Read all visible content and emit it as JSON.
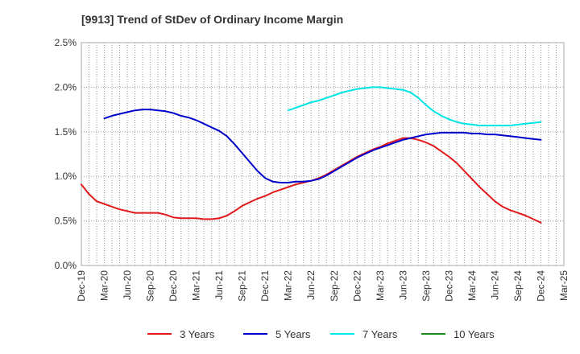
{
  "chart_data": {
    "type": "line",
    "title": "[9913]  Trend of StDev of Ordinary Income Margin",
    "xlabel": "",
    "ylabel": "",
    "ylim": [
      0,
      2.5
    ],
    "y_ticks": [
      "0.0%",
      "0.5%",
      "1.0%",
      "1.5%",
      "2.0%",
      "2.5%"
    ],
    "x_ticks": [
      "Dec-19",
      "Mar-20",
      "Jun-20",
      "Sep-20",
      "Dec-20",
      "Mar-21",
      "Jun-21",
      "Sep-21",
      "Dec-21",
      "Mar-22",
      "Jun-22",
      "Sep-22",
      "Dec-22",
      "Mar-23",
      "Jun-23",
      "Sep-23",
      "Dec-23",
      "Mar-24",
      "Jun-24",
      "Sep-24",
      "Dec-24",
      "Mar-25"
    ],
    "grid": true,
    "legend_position": "bottom",
    "series": [
      {
        "name": "3 Years",
        "color": "#e31a1c",
        "points": [
          [
            "Dec-19",
            0.91
          ],
          [
            "Jan-20",
            0.8
          ],
          [
            "Feb-20",
            0.72
          ],
          [
            "Mar-20",
            0.69
          ],
          [
            "Apr-20",
            0.66
          ],
          [
            "May-20",
            0.63
          ],
          [
            "Jun-20",
            0.61
          ],
          [
            "Jul-20",
            0.59
          ],
          [
            "Aug-20",
            0.59
          ],
          [
            "Sep-20",
            0.59
          ],
          [
            "Oct-20",
            0.59
          ],
          [
            "Nov-20",
            0.57
          ],
          [
            "Dec-20",
            0.54
          ],
          [
            "Jan-21",
            0.53
          ],
          [
            "Feb-21",
            0.53
          ],
          [
            "Mar-21",
            0.53
          ],
          [
            "Apr-21",
            0.52
          ],
          [
            "May-21",
            0.52
          ],
          [
            "Jun-21",
            0.53
          ],
          [
            "Jul-21",
            0.56
          ],
          [
            "Aug-21",
            0.61
          ],
          [
            "Sep-21",
            0.67
          ],
          [
            "Oct-21",
            0.71
          ],
          [
            "Nov-21",
            0.75
          ],
          [
            "Dec-21",
            0.78
          ],
          [
            "Jan-22",
            0.82
          ],
          [
            "Feb-22",
            0.85
          ],
          [
            "Mar-22",
            0.88
          ],
          [
            "Apr-22",
            0.91
          ],
          [
            "May-22",
            0.93
          ],
          [
            "Jun-22",
            0.95
          ],
          [
            "Jul-22",
            0.98
          ],
          [
            "Aug-22",
            1.02
          ],
          [
            "Sep-22",
            1.07
          ],
          [
            "Oct-22",
            1.12
          ],
          [
            "Nov-22",
            1.17
          ],
          [
            "Dec-22",
            1.22
          ],
          [
            "Jan-23",
            1.26
          ],
          [
            "Feb-23",
            1.3
          ],
          [
            "Mar-23",
            1.33
          ],
          [
            "Apr-23",
            1.37
          ],
          [
            "May-23",
            1.4
          ],
          [
            "Jun-23",
            1.43
          ],
          [
            "Jul-23",
            1.43
          ],
          [
            "Aug-23",
            1.41
          ],
          [
            "Sep-23",
            1.38
          ],
          [
            "Oct-23",
            1.34
          ],
          [
            "Nov-23",
            1.28
          ],
          [
            "Dec-23",
            1.22
          ],
          [
            "Jan-24",
            1.15
          ],
          [
            "Feb-24",
            1.06
          ],
          [
            "Mar-24",
            0.97
          ],
          [
            "Apr-24",
            0.88
          ],
          [
            "May-24",
            0.8
          ],
          [
            "Jun-24",
            0.72
          ],
          [
            "Jul-24",
            0.66
          ],
          [
            "Aug-24",
            0.62
          ],
          [
            "Sep-24",
            0.59
          ],
          [
            "Oct-24",
            0.56
          ],
          [
            "Nov-24",
            0.52
          ],
          [
            "Dec-24",
            0.48
          ]
        ]
      },
      {
        "name": "5 Years",
        "color": "#0000cc",
        "points": [
          [
            "Mar-20",
            1.65
          ],
          [
            "Apr-20",
            1.68
          ],
          [
            "May-20",
            1.7
          ],
          [
            "Jun-20",
            1.72
          ],
          [
            "Jul-20",
            1.74
          ],
          [
            "Aug-20",
            1.75
          ],
          [
            "Sep-20",
            1.75
          ],
          [
            "Oct-20",
            1.74
          ],
          [
            "Nov-20",
            1.73
          ],
          [
            "Dec-20",
            1.71
          ],
          [
            "Jan-21",
            1.68
          ],
          [
            "Feb-21",
            1.66
          ],
          [
            "Mar-21",
            1.63
          ],
          [
            "Apr-21",
            1.59
          ],
          [
            "May-21",
            1.55
          ],
          [
            "Jun-21",
            1.51
          ],
          [
            "Jul-21",
            1.45
          ],
          [
            "Aug-21",
            1.36
          ],
          [
            "Sep-21",
            1.26
          ],
          [
            "Oct-21",
            1.16
          ],
          [
            "Nov-21",
            1.06
          ],
          [
            "Dec-21",
            0.98
          ],
          [
            "Jan-22",
            0.94
          ],
          [
            "Feb-22",
            0.93
          ],
          [
            "Mar-22",
            0.93
          ],
          [
            "Apr-22",
            0.94
          ],
          [
            "May-22",
            0.94
          ],
          [
            "Jun-22",
            0.95
          ],
          [
            "Jul-22",
            0.97
          ],
          [
            "Aug-22",
            1.01
          ],
          [
            "Sep-22",
            1.06
          ],
          [
            "Oct-22",
            1.11
          ],
          [
            "Nov-22",
            1.16
          ],
          [
            "Dec-22",
            1.21
          ],
          [
            "Jan-23",
            1.25
          ],
          [
            "Feb-23",
            1.29
          ],
          [
            "Mar-23",
            1.32
          ],
          [
            "Apr-23",
            1.35
          ],
          [
            "May-23",
            1.38
          ],
          [
            "Jun-23",
            1.41
          ],
          [
            "Jul-23",
            1.43
          ],
          [
            "Aug-23",
            1.45
          ],
          [
            "Sep-23",
            1.47
          ],
          [
            "Oct-23",
            1.48
          ],
          [
            "Nov-23",
            1.49
          ],
          [
            "Dec-23",
            1.49
          ],
          [
            "Jan-24",
            1.49
          ],
          [
            "Feb-24",
            1.49
          ],
          [
            "Mar-24",
            1.48
          ],
          [
            "Apr-24",
            1.48
          ],
          [
            "May-24",
            1.47
          ],
          [
            "Jun-24",
            1.47
          ],
          [
            "Jul-24",
            1.46
          ],
          [
            "Aug-24",
            1.45
          ],
          [
            "Sep-24",
            1.44
          ],
          [
            "Oct-24",
            1.43
          ],
          [
            "Nov-24",
            1.42
          ],
          [
            "Dec-24",
            1.41
          ]
        ]
      },
      {
        "name": "7 Years",
        "color": "#00e5e5",
        "points": [
          [
            "Mar-22",
            1.74
          ],
          [
            "Apr-22",
            1.77
          ],
          [
            "May-22",
            1.8
          ],
          [
            "Jun-22",
            1.83
          ],
          [
            "Jul-22",
            1.85
          ],
          [
            "Aug-22",
            1.88
          ],
          [
            "Sep-22",
            1.91
          ],
          [
            "Oct-22",
            1.94
          ],
          [
            "Nov-22",
            1.96
          ],
          [
            "Dec-22",
            1.98
          ],
          [
            "Jan-23",
            1.99
          ],
          [
            "Feb-23",
            2.0
          ],
          [
            "Mar-23",
            2.0
          ],
          [
            "Apr-23",
            1.99
          ],
          [
            "May-23",
            1.98
          ],
          [
            "Jun-23",
            1.97
          ],
          [
            "Jul-23",
            1.94
          ],
          [
            "Aug-23",
            1.88
          ],
          [
            "Sep-23",
            1.8
          ],
          [
            "Oct-23",
            1.73
          ],
          [
            "Nov-23",
            1.68
          ],
          [
            "Dec-23",
            1.64
          ],
          [
            "Jan-24",
            1.61
          ],
          [
            "Feb-24",
            1.59
          ],
          [
            "Mar-24",
            1.58
          ],
          [
            "Apr-24",
            1.57
          ],
          [
            "May-24",
            1.57
          ],
          [
            "Jun-24",
            1.57
          ],
          [
            "Jul-24",
            1.57
          ],
          [
            "Aug-24",
            1.57
          ],
          [
            "Sep-24",
            1.58
          ],
          [
            "Oct-24",
            1.59
          ],
          [
            "Nov-24",
            1.6
          ],
          [
            "Dec-24",
            1.61
          ]
        ]
      },
      {
        "name": "10 Years",
        "color": "#1a8c1a",
        "points": []
      }
    ]
  }
}
